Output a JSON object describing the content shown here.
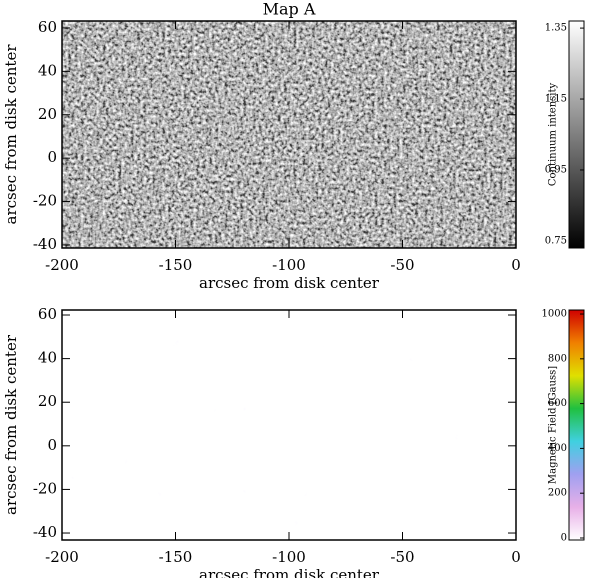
{
  "chart_data": [
    {
      "type": "heatmap",
      "title": "Map A",
      "xlabel": "arcsec from disk center",
      "ylabel": "arcsec from disk center",
      "xlim": [
        -200,
        0
      ],
      "xticks": [
        -200,
        -150,
        -100,
        -50,
        0
      ],
      "ylim": [
        -41.4,
        63.2
      ],
      "yticks": [
        -40,
        -20,
        0,
        20,
        40,
        60
      ],
      "colorbar": {
        "label": "Continuum intensity",
        "lim": [
          0.73,
          1.37
        ],
        "ticks": [
          0.75,
          0.95,
          1.15,
          1.35
        ],
        "colors": [
          "#000000",
          "#ffffff"
        ]
      }
    },
    {
      "type": "heatmap",
      "xlabel": "arcsec from disk center",
      "ylabel": "arcsec from disk center",
      "xlim": [
        -200,
        0
      ],
      "xticks": [
        -200,
        -150,
        -100,
        -50,
        0
      ],
      "ylim": [
        -43.2,
        62.3
      ],
      "yticks": [
        -40,
        -20,
        0,
        20,
        40,
        60
      ],
      "colorbar": {
        "label": "Magnetic Field [Gauss]",
        "lim": [
          -9,
          1018
        ],
        "ticks": [
          0,
          200,
          400,
          600,
          800,
          1000
        ],
        "colors": [
          "#ffffff",
          "#e8b0e8",
          "#a0a0f0",
          "#40d0e0",
          "#20c040",
          "#e0e000",
          "#f08000",
          "#d00000"
        ]
      }
    }
  ]
}
